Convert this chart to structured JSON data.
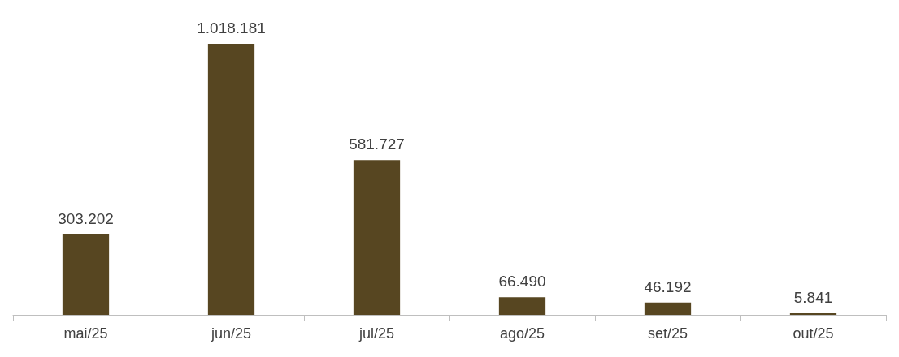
{
  "chart_data": {
    "type": "bar",
    "categories": [
      "mai/25",
      "jun/25",
      "jul/25",
      "ago/25",
      "set/25",
      "out/25"
    ],
    "values": [
      303202,
      1018181,
      581727,
      66490,
      46192,
      5841
    ],
    "value_labels": [
      "303.202",
      "1.018.181",
      "581.727",
      "66.490",
      "46.192",
      "5.841"
    ],
    "color": "#574621",
    "grid": false
  }
}
